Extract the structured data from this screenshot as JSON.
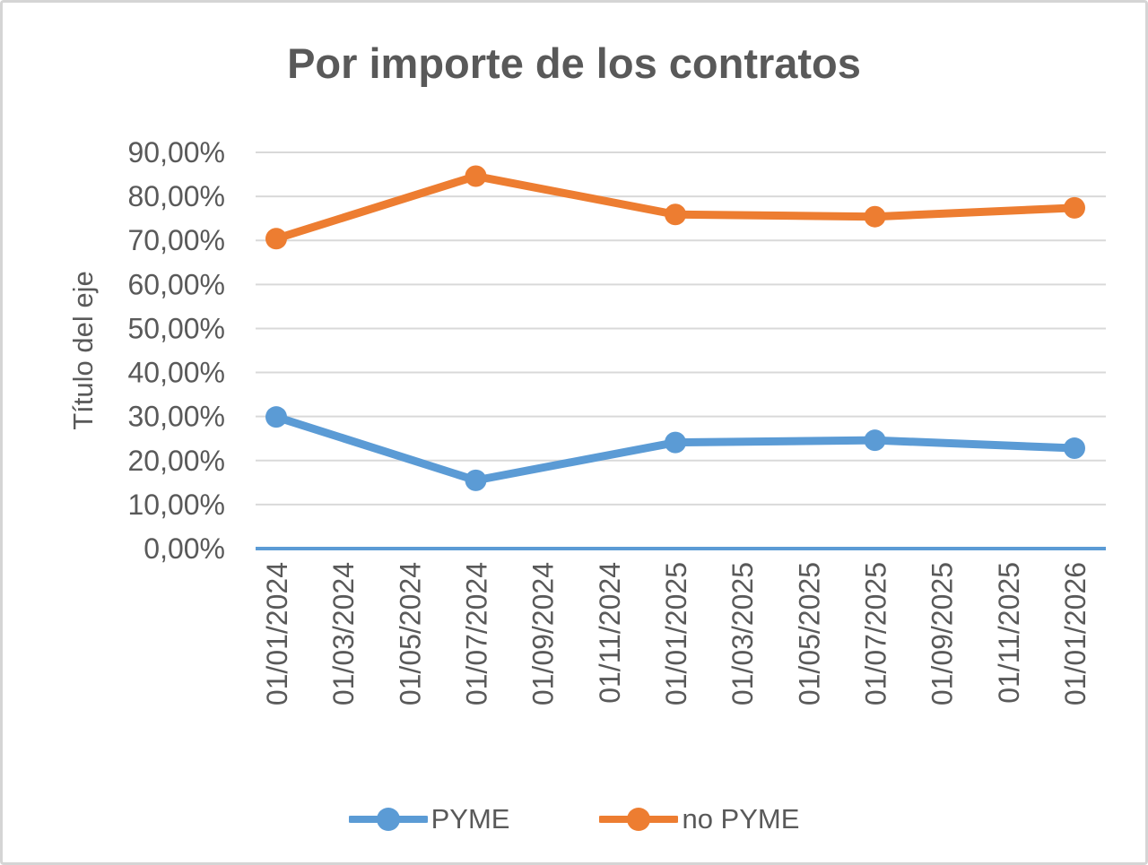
{
  "frame": {
    "border_color": "#d5d5d5",
    "background": "#ffffff"
  },
  "chart_data": {
    "type": "line",
    "title": "Por importe de los contratos",
    "xlabel": "",
    "ylabel": "Título del eje",
    "ylim": [
      0,
      90
    ],
    "y_step": 10,
    "grid": true,
    "legend_position": "bottom",
    "y_tick_labels": [
      "0,00%",
      "10,00%",
      "20,00%",
      "30,00%",
      "40,00%",
      "50,00%",
      "60,00%",
      "70,00%",
      "80,00%",
      "90,00%"
    ],
    "x_tick_labels": [
      "01/01/2024",
      "01/03/2024",
      "01/05/2024",
      "01/07/2024",
      "01/09/2024",
      "01/11/2024",
      "01/01/2025",
      "01/03/2025",
      "01/05/2025",
      "01/07/2025",
      "01/09/2025",
      "01/11/2025",
      "01/01/2026"
    ],
    "series": [
      {
        "name": "PYME",
        "color": "#5B9BD5",
        "x_labels": [
          "01/01/2024",
          "01/07/2024",
          "01/01/2025",
          "01/07/2025",
          "01/01/2026"
        ],
        "x_indices": [
          0,
          3,
          6,
          9,
          12
        ],
        "values": [
          29.9,
          15.5,
          24.1,
          24.6,
          22.8
        ]
      },
      {
        "name": "no PYME",
        "color": "#ED7D31",
        "x_labels": [
          "01/01/2024",
          "01/07/2024",
          "01/01/2025",
          "01/07/2025",
          "01/01/2026"
        ],
        "x_indices": [
          0,
          3,
          6,
          9,
          12
        ],
        "values": [
          70.4,
          84.6,
          75.9,
          75.4,
          77.4
        ]
      }
    ],
    "colors": {
      "gridline": "#d9d9d9",
      "axis_line": "#5B9BD5",
      "text": "#595959",
      "title": "#595959"
    }
  }
}
